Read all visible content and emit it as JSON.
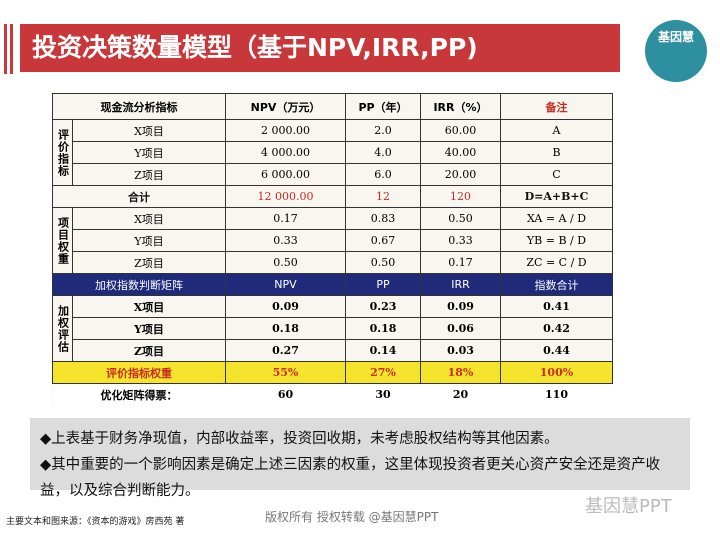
{
  "header": {
    "title": "投资决策数量模型（基于NPV,IRR,PP)",
    "logo": "基因慧"
  },
  "table": {
    "header": [
      "现金流分析指标",
      "NPV（万元）",
      "PP（年）",
      "IRR（%）",
      "备注"
    ],
    "eval": {
      "label": "评价指标",
      "rows": [
        [
          "X项目",
          "2 000.00",
          "2.0",
          "60.00",
          "A"
        ],
        [
          "Y项目",
          "4 000.00",
          "4.0",
          "40.00",
          "B"
        ],
        [
          "Z项目",
          "6 000.00",
          "6.0",
          "20.00",
          "C"
        ]
      ]
    },
    "total": [
      "合计",
      "12 000.00",
      "12",
      "120",
      "D=A+B+C"
    ],
    "weight": {
      "label": "项目权重",
      "rows": [
        [
          "X项目",
          "0.17",
          "0.83",
          "0.50",
          "XA = A / D"
        ],
        [
          "Y项目",
          "0.33",
          "0.67",
          "0.33",
          "YB = B / D"
        ],
        [
          "Z项目",
          "0.50",
          "0.50",
          "0.17",
          "ZC = C / D"
        ]
      ]
    },
    "matrix_header": [
      "加权指数判断矩阵",
      "NPV",
      "PP",
      "IRR",
      "指数合计"
    ],
    "weighted": {
      "label": "加权评估",
      "rows": [
        [
          "X项目",
          "0.09",
          "0.23",
          "0.09",
          "0.41"
        ],
        [
          "Y项目",
          "0.18",
          "0.18",
          "0.06",
          "0.42"
        ],
        [
          "Z项目",
          "0.27",
          "0.14",
          "0.03",
          "0.44"
        ]
      ]
    },
    "index_weight": [
      "评价指标权重",
      "55%",
      "27%",
      "18%",
      "100%"
    ],
    "votes": [
      "优化矩阵得票：",
      "60",
      "30",
      "20",
      "110"
    ]
  },
  "notes": [
    "◆上表基于财务净现值，内部收益率，投资回收期，未考虑股权结构等其他因素。",
    "◆其中重要的一个影响因素是确定上述三因素的权重，这里体现投资者更关心资产安全还是资产收益，以及综合判断能力。"
  ],
  "source": "主要文本和图来源：《资本的游戏》房西苑 著",
  "watermark": "版权所有  授权转载  @基因慧PPT",
  "brand": "基因慧PPT"
}
